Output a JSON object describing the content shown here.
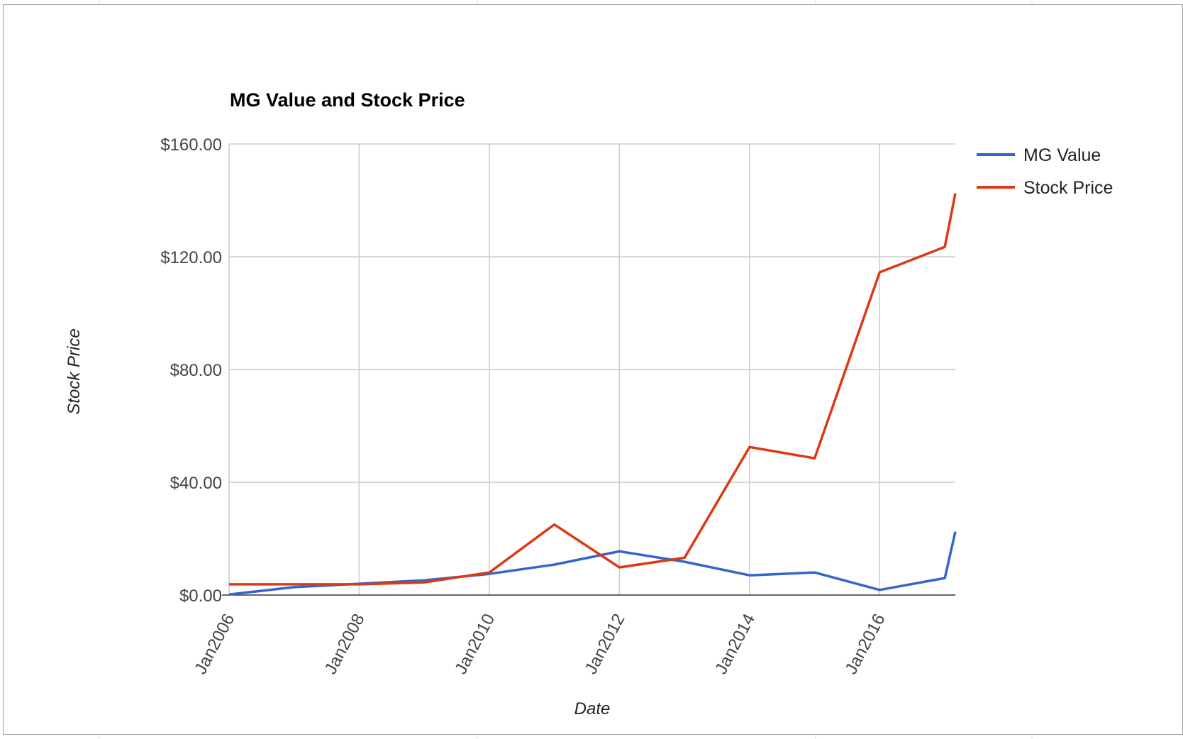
{
  "chart_data": {
    "type": "line",
    "title": "MG Value and Stock Price",
    "xlabel": "Date",
    "ylabel": "Stock Price",
    "ylim": [
      0,
      160
    ],
    "xlim": [
      "2006-01-01",
      "2017-03-01"
    ],
    "yticks": [
      {
        "value": 0,
        "label": "$0.00"
      },
      {
        "value": 40,
        "label": "$40.00"
      },
      {
        "value": 80,
        "label": "$80.00"
      },
      {
        "value": 120,
        "label": "$120.00"
      },
      {
        "value": 160,
        "label": "$160.00"
      }
    ],
    "xticks": [
      {
        "date": "2006-01-01",
        "label": "Jan2006"
      },
      {
        "date": "2008-01-01",
        "label": "Jan2008"
      },
      {
        "date": "2010-01-01",
        "label": "Jan2010"
      },
      {
        "date": "2012-01-01",
        "label": "Jan2012"
      },
      {
        "date": "2014-01-01",
        "label": "Jan2014"
      },
      {
        "date": "2016-01-01",
        "label": "Jan2016"
      }
    ],
    "grid": true,
    "legend_position": "right",
    "series": [
      {
        "name": "MG Value",
        "color": "#3366cc",
        "points": [
          {
            "x": "2006-01-01",
            "y": 0.2
          },
          {
            "x": "2007-01-01",
            "y": 2.8
          },
          {
            "x": "2008-01-01",
            "y": 4.0
          },
          {
            "x": "2009-01-01",
            "y": 5.2
          },
          {
            "x": "2010-01-01",
            "y": 7.5
          },
          {
            "x": "2011-01-01",
            "y": 10.8
          },
          {
            "x": "2012-01-01",
            "y": 15.5
          },
          {
            "x": "2013-01-01",
            "y": 11.8
          },
          {
            "x": "2014-01-01",
            "y": 7.0
          },
          {
            "x": "2015-01-01",
            "y": 8.0
          },
          {
            "x": "2016-01-01",
            "y": 1.8
          },
          {
            "x": "2017-01-01",
            "y": 6.0
          },
          {
            "x": "2017-03-01",
            "y": 22.5
          }
        ]
      },
      {
        "name": "Stock Price",
        "color": "#dc3912",
        "points": [
          {
            "x": "2006-01-01",
            "y": 3.8
          },
          {
            "x": "2007-01-01",
            "y": 3.8
          },
          {
            "x": "2008-01-01",
            "y": 3.8
          },
          {
            "x": "2009-01-01",
            "y": 4.5
          },
          {
            "x": "2010-01-01",
            "y": 8.0
          },
          {
            "x": "2011-01-01",
            "y": 25.0
          },
          {
            "x": "2012-01-01",
            "y": 9.8
          },
          {
            "x": "2013-01-01",
            "y": 13.2
          },
          {
            "x": "2014-01-01",
            "y": 52.5
          },
          {
            "x": "2015-01-01",
            "y": 48.5
          },
          {
            "x": "2016-01-01",
            "y": 114.5
          },
          {
            "x": "2017-01-01",
            "y": 123.5
          },
          {
            "x": "2017-03-01",
            "y": 142.5
          }
        ]
      }
    ]
  }
}
